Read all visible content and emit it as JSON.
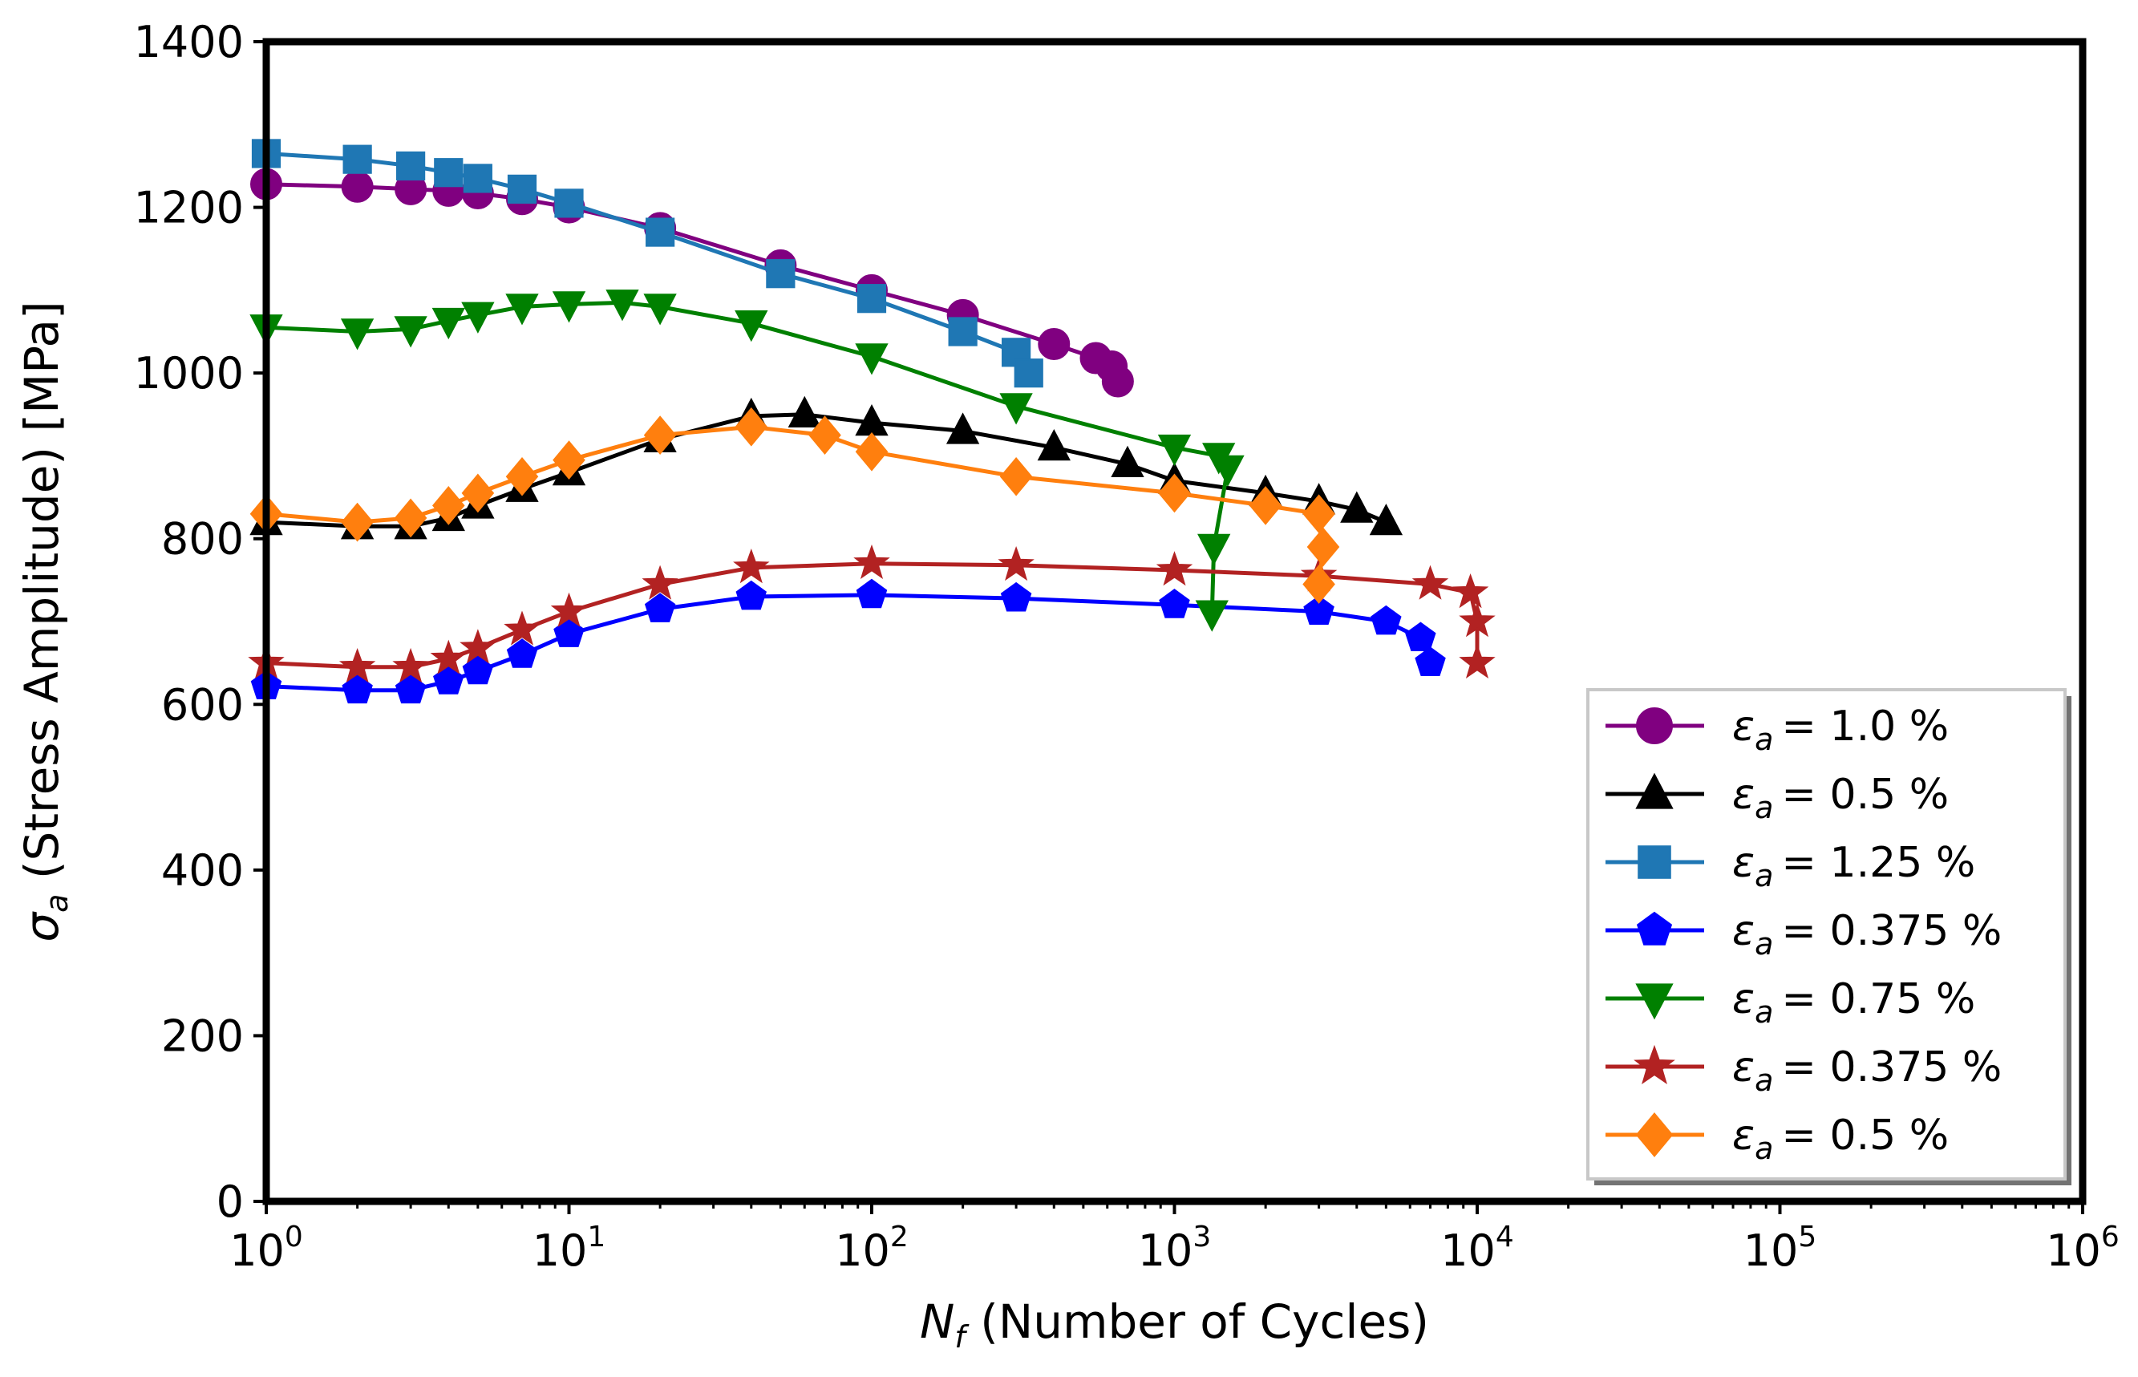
{
  "chart_data": {
    "type": "line",
    "title": "",
    "xscale": "log",
    "xlim": [
      1,
      1000000
    ],
    "ylim": [
      0,
      1400
    ],
    "xlabel": {
      "symbol": "N",
      "subscript": "f",
      "text": "(Number of Cycles)"
    },
    "ylabel": {
      "symbol": "σ",
      "subscript": "a",
      "text": "(Stress Amplitude) [MPa]"
    },
    "x_ticks": [
      {
        "base": "10",
        "exp": "0",
        "value": 1
      },
      {
        "base": "10",
        "exp": "1",
        "value": 10
      },
      {
        "base": "10",
        "exp": "2",
        "value": 100
      },
      {
        "base": "10",
        "exp": "3",
        "value": 1000
      },
      {
        "base": "10",
        "exp": "4",
        "value": 10000
      },
      {
        "base": "10",
        "exp": "5",
        "value": 100000
      },
      {
        "base": "10",
        "exp": "6",
        "value": 1000000
      }
    ],
    "y_ticks": [
      {
        "label": "0",
        "value": 0
      },
      {
        "label": "200",
        "value": 200
      },
      {
        "label": "400",
        "value": 400
      },
      {
        "label": "600",
        "value": 600
      },
      {
        "label": "800",
        "value": 800
      },
      {
        "label": "1000",
        "value": 1000
      },
      {
        "label": "1200",
        "value": 1200
      },
      {
        "label": "1400",
        "value": 1400
      }
    ],
    "legend_position": "lower-right",
    "series": [
      {
        "name": "ε_a = 1.0 %",
        "symbol": "ε",
        "subscript": "a",
        "value_text": "= 1.0 %",
        "color": "#800080",
        "marker": "circle",
        "x": [
          1,
          2,
          3,
          4,
          5,
          7,
          10,
          20,
          50,
          100,
          200,
          400,
          550,
          620,
          650
        ],
        "y": [
          1228,
          1225,
          1222,
          1220,
          1217,
          1210,
          1200,
          1175,
          1130,
          1100,
          1070,
          1035,
          1018,
          1008,
          990
        ]
      },
      {
        "name": "ε_a = 0.5 %",
        "symbol": "ε",
        "subscript": "a",
        "value_text": "= 0.5 %",
        "color": "#000000",
        "marker": "triangle-up",
        "x": [
          1,
          2,
          3,
          4,
          5,
          7,
          10,
          20,
          40,
          60,
          100,
          200,
          400,
          700,
          1000,
          2000,
          3000,
          4000,
          5000
        ],
        "y": [
          820,
          815,
          815,
          825,
          840,
          860,
          880,
          920,
          948,
          950,
          940,
          930,
          910,
          890,
          870,
          855,
          845,
          835,
          820
        ]
      },
      {
        "name": "ε_a = 1.25 %",
        "symbol": "ε",
        "subscript": "a",
        "value_text": "= 1.25 %",
        "color": "#1f77b4",
        "marker": "square",
        "x": [
          1,
          2,
          3,
          4,
          5,
          7,
          10,
          20,
          50,
          100,
          200,
          300,
          330
        ],
        "y": [
          1265,
          1258,
          1250,
          1242,
          1235,
          1222,
          1205,
          1170,
          1120,
          1090,
          1050,
          1025,
          1000
        ]
      },
      {
        "name": "ε_a = 0.375 %",
        "symbol": "ε",
        "subscript": "a",
        "value_text": "= 0.375 %",
        "color": "#0000ff",
        "marker": "pentagon",
        "x": [
          1,
          2,
          3,
          4,
          5,
          7,
          10,
          20,
          40,
          100,
          300,
          1000,
          3000,
          5000,
          6500,
          7000
        ],
        "y": [
          622,
          617,
          617,
          628,
          640,
          660,
          685,
          715,
          730,
          732,
          728,
          720,
          712,
          700,
          680,
          650
        ]
      },
      {
        "name": "ε_a = 0.75 %",
        "symbol": "ε",
        "subscript": "a",
        "value_text": "= 0.75 %",
        "color": "#008000",
        "marker": "triangle-down",
        "x": [
          1,
          2,
          3,
          4,
          5,
          7,
          10,
          15,
          20,
          40,
          100,
          300,
          1000,
          1400,
          1500,
          1350,
          1330
        ],
        "y": [
          1055,
          1050,
          1053,
          1063,
          1070,
          1080,
          1083,
          1085,
          1080,
          1060,
          1020,
          960,
          910,
          900,
          885,
          790,
          710
        ]
      },
      {
        "name": "ε_a = 0.375 %",
        "symbol": "ε",
        "subscript": "a",
        "value_text": "= 0.375 %",
        "color": "#b22222",
        "marker": "star",
        "x": [
          1,
          2,
          3,
          4,
          5,
          7,
          10,
          20,
          40,
          100,
          300,
          1000,
          3000,
          7000,
          9500,
          10000,
          10000
        ],
        "y": [
          650,
          645,
          645,
          655,
          668,
          690,
          712,
          745,
          765,
          770,
          768,
          762,
          755,
          745,
          735,
          700,
          650
        ]
      },
      {
        "name": "ε_a = 0.5 %",
        "symbol": "ε",
        "subscript": "a",
        "value_text": "= 0.5 %",
        "color": "#ff7f0e",
        "marker": "diamond",
        "x": [
          1,
          2,
          3,
          4,
          5,
          7,
          10,
          20,
          40,
          70,
          100,
          300,
          1000,
          2000,
          3000,
          3100,
          3000
        ],
        "y": [
          830,
          820,
          825,
          840,
          855,
          875,
          895,
          925,
          935,
          925,
          905,
          875,
          855,
          840,
          830,
          790,
          745
        ]
      }
    ]
  }
}
